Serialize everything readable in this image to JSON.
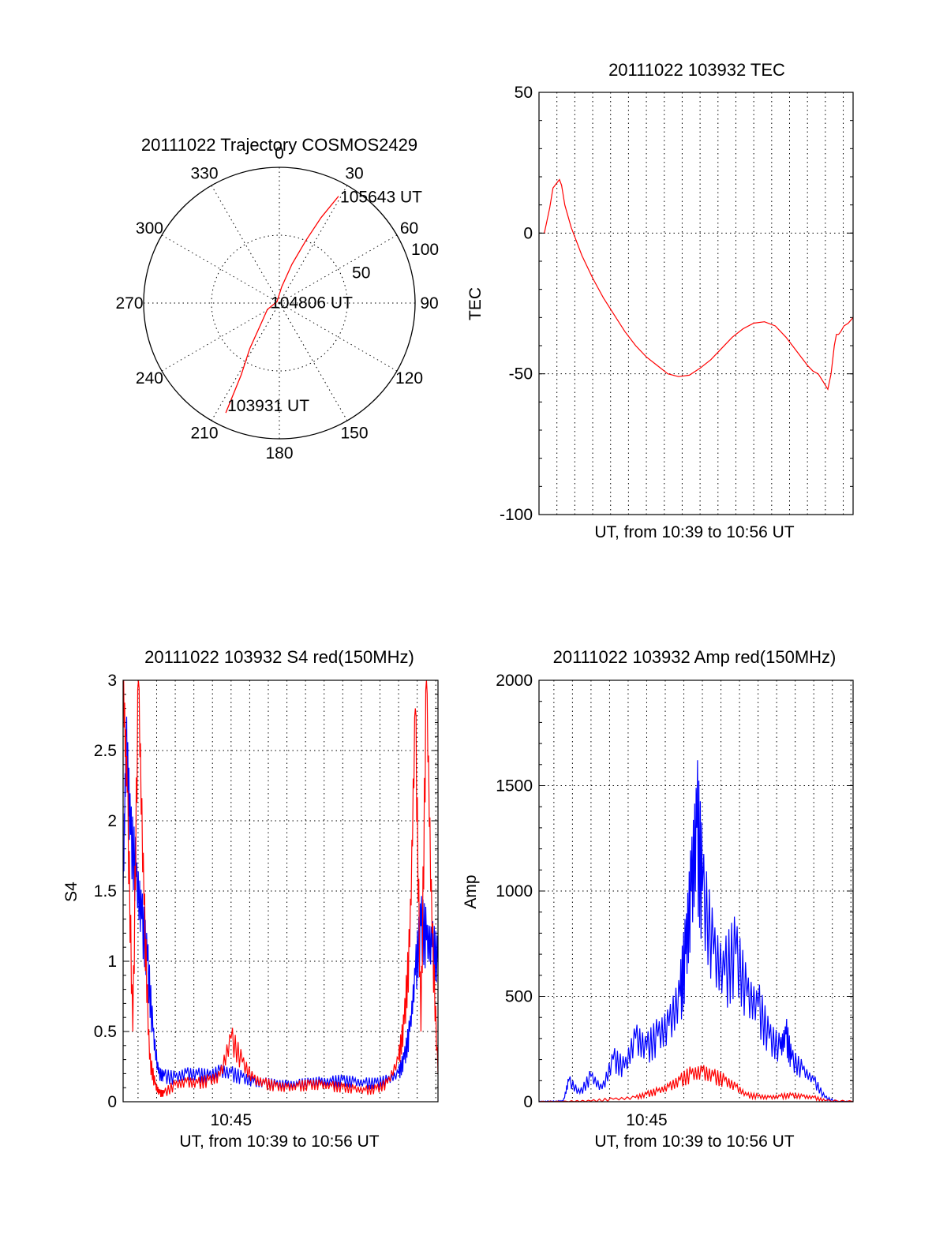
{
  "chart_data": [
    {
      "type": "polar",
      "title": "20111022 Trajectory COSMOS2429",
      "angle_labels": [
        "0",
        "30",
        "60",
        "90",
        "120",
        "150",
        "180",
        "210",
        "240",
        "270",
        "300",
        "330"
      ],
      "radial_labels": [
        "50",
        "100"
      ],
      "rlim": [
        0,
        100
      ],
      "grid": true,
      "series": [
        {
          "color": "#ff0000",
          "points": [
            [
              206,
              90
            ],
            [
              208,
              60
            ],
            [
              213,
              40
            ],
            [
              222,
              20
            ],
            [
              242,
              10
            ],
            [
              300,
              2
            ],
            [
              8,
              12
            ],
            [
              18,
              30
            ],
            [
              23,
              50
            ],
            [
              26,
              70
            ],
            [
              29,
              90
            ]
          ]
        }
      ],
      "annotations": [
        {
          "text": "105643 UT",
          "az": 29,
          "el": 90
        },
        {
          "text": "104806 UT",
          "az": 300,
          "el": 2
        },
        {
          "text": "103931 UT",
          "az": 206,
          "el": 90
        }
      ]
    },
    {
      "type": "line",
      "title": "20111022 103932 TEC",
      "xlabel": "UT, from 10:39 to 10:56 UT",
      "ylabel": "TEC",
      "xlim": [
        10.65,
        10.9425
      ],
      "ylim": [
        -100,
        50
      ],
      "yticks": [
        -100,
        -50,
        0,
        50
      ],
      "grid": true,
      "series": [
        {
          "color": "#ff0000",
          "x": [
            10.655,
            10.66,
            10.663,
            10.667,
            10.669,
            10.671,
            10.674,
            10.68,
            10.69,
            10.7,
            10.71,
            10.72,
            10.73,
            10.74,
            10.75,
            10.76,
            10.77,
            10.78,
            10.79,
            10.8,
            10.81,
            10.82,
            10.83,
            10.84,
            10.85,
            10.86,
            10.87,
            10.88,
            10.89,
            10.9,
            10.905,
            10.91,
            10.915,
            10.919,
            10.922,
            10.925,
            10.927,
            10.929,
            10.931,
            10.934,
            10.938,
            10.9425
          ],
          "y": [
            0,
            9,
            16,
            18,
            19,
            17,
            10,
            2,
            -8,
            -16,
            -23,
            -29,
            -35,
            -40,
            -44,
            -47,
            -50,
            -51,
            -50.5,
            -48,
            -45,
            -41,
            -37,
            -34,
            -32,
            -31.5,
            -33,
            -37,
            -42,
            -47,
            -49,
            -50,
            -53,
            -55.5,
            -50,
            -40,
            -36,
            -36,
            -35,
            -33,
            -32,
            -30
          ]
        }
      ]
    },
    {
      "type": "line",
      "title": "20111022 103932 S4 red(150MHz)",
      "xlabel": "UT, from 10:39 to 10:56 UT",
      "ylabel": "S4",
      "xlim": [
        10.6533,
        10.9353
      ],
      "ylim": [
        0,
        3
      ],
      "yticks": [
        0,
        0.5,
        1,
        1.5,
        2,
        2.5,
        3
      ],
      "xtick_label": "10:45",
      "xtick_value": 10.75,
      "grid": true,
      "series": [
        {
          "color": "#0000ff",
          "x": [
            10.6533,
            10.656,
            10.66,
            10.665,
            10.67,
            10.675,
            10.68,
            10.685,
            10.69,
            10.7,
            10.71,
            10.72,
            10.73,
            10.74,
            10.75,
            10.76,
            10.77,
            10.78,
            10.79,
            10.8,
            10.81,
            10.82,
            10.83,
            10.84,
            10.85,
            10.86,
            10.87,
            10.88,
            10.89,
            10.9,
            10.905,
            10.91,
            10.915,
            10.92,
            10.925,
            10.93,
            10.9353
          ],
          "y": [
            1.5,
            2.6,
            1.9,
            1.6,
            1.3,
            1.0,
            0.5,
            0.2,
            0.18,
            0.17,
            0.2,
            0.19,
            0.18,
            0.22,
            0.2,
            0.17,
            0.14,
            0.13,
            0.12,
            0.12,
            0.12,
            0.13,
            0.14,
            0.14,
            0.15,
            0.14,
            0.13,
            0.13,
            0.15,
            0.2,
            0.3,
            0.5,
            0.9,
            1.25,
            1.15,
            1.1,
            1.0
          ]
        },
        {
          "color": "#ff0000",
          "x": [
            10.6533,
            10.657,
            10.662,
            10.667,
            10.672,
            10.677,
            10.682,
            10.686,
            10.69,
            10.7,
            10.71,
            10.72,
            10.73,
            10.74,
            10.75,
            10.76,
            10.77,
            10.78,
            10.79,
            10.8,
            10.81,
            10.82,
            10.83,
            10.84,
            10.85,
            10.86,
            10.87,
            10.88,
            10.89,
            10.9,
            10.905,
            10.91,
            10.915,
            10.92,
            10.925,
            10.93,
            10.9353
          ],
          "y": [
            3,
            2.2,
            0.5,
            3,
            1.4,
            0.3,
            0.12,
            0.06,
            0.06,
            0.12,
            0.14,
            0.13,
            0.15,
            0.18,
            0.45,
            0.28,
            0.16,
            0.13,
            0.11,
            0.1,
            0.11,
            0.12,
            0.12,
            0.11,
            0.1,
            0.09,
            0.08,
            0.09,
            0.13,
            0.3,
            0.55,
            1.1,
            2.8,
            0.5,
            3,
            1.2,
            0.2
          ]
        }
      ]
    },
    {
      "type": "line",
      "title": "20111022 103932 Amp red(150MHz)",
      "xlabel": "UT, from 10:39 to 10:56 UT",
      "ylabel": "Amp",
      "xlim": [
        10.6533,
        10.9353
      ],
      "ylim": [
        0,
        2000
      ],
      "yticks": [
        0,
        500,
        1000,
        1500,
        2000
      ],
      "xtick_label": "10:45",
      "xtick_value": 10.75,
      "grid": true,
      "series": [
        {
          "color": "#0000ff",
          "x": [
            10.6533,
            10.66,
            10.67,
            10.675,
            10.68,
            10.69,
            10.7,
            10.71,
            10.72,
            10.73,
            10.74,
            10.75,
            10.76,
            10.77,
            10.78,
            10.785,
            10.79,
            10.795,
            10.8,
            10.81,
            10.82,
            10.83,
            10.84,
            10.85,
            10.86,
            10.87,
            10.875,
            10.88,
            10.89,
            10.9,
            10.91,
            10.92,
            10.9353
          ],
          "y": [
            0,
            0,
            0,
            0,
            100,
            40,
            120,
            60,
            200,
            160,
            300,
            250,
            310,
            360,
            500,
            700,
            1000,
            1300,
            1000,
            700,
            600,
            700,
            500,
            450,
            300,
            250,
            320,
            200,
            150,
            100,
            20,
            0,
            0
          ]
        },
        {
          "color": "#ff0000",
          "x": [
            10.6533,
            10.68,
            10.7,
            10.72,
            10.74,
            10.75,
            10.76,
            10.77,
            10.78,
            10.79,
            10.8,
            10.81,
            10.82,
            10.83,
            10.84,
            10.85,
            10.86,
            10.87,
            10.88,
            10.89,
            10.9,
            10.91,
            10.9353
          ],
          "y": [
            0,
            0,
            3,
            12,
            20,
            35,
            50,
            70,
            100,
            130,
            140,
            120,
            100,
            70,
            30,
            25,
            20,
            25,
            30,
            25,
            20,
            5,
            0
          ]
        }
      ]
    }
  ]
}
